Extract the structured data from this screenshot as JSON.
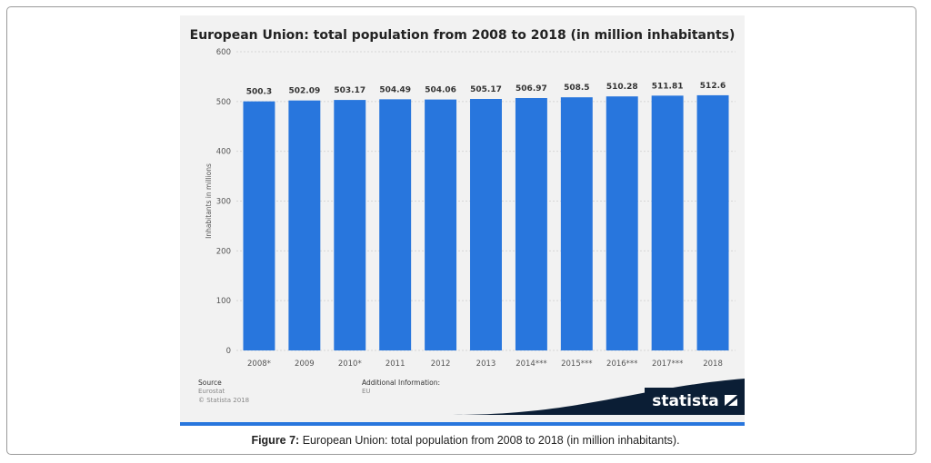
{
  "chart_data": {
    "type": "bar",
    "title": "European Union: total population from 2008 to 2018 (in million inhabitants)",
    "ylabel": "Inhabitants in millions",
    "xlabel": "",
    "ylim": [
      0,
      600
    ],
    "yticks": [
      "0",
      "100",
      "200",
      "300",
      "400",
      "500",
      "600"
    ],
    "categories": [
      "2008*",
      "2009",
      "2010*",
      "2011",
      "2012",
      "2013",
      "2014***",
      "2015***",
      "2016***",
      "2017***",
      "2018"
    ],
    "values": [
      500.3,
      502.09,
      503.17,
      504.49,
      504.06,
      505.17,
      506.97,
      508.5,
      510.28,
      511.81,
      512.6
    ],
    "value_labels": [
      "500.3",
      "502.09",
      "503.17",
      "504.49",
      "504.06",
      "505.17",
      "506.97",
      "508.5",
      "510.28",
      "511.81",
      "512.6"
    ],
    "bar_color": "#2876dd",
    "grid": true
  },
  "footer": {
    "source_label": "Source",
    "source_lines": [
      "Eurostat",
      "© Statista 2018"
    ],
    "additional_label": "Additional Information:",
    "additional_value": "EU",
    "brand": "statista"
  },
  "caption": {
    "figure_label": "Figure 7:",
    "text": " European Union: total population from 2008 to 2018 (in million inhabitants)."
  }
}
